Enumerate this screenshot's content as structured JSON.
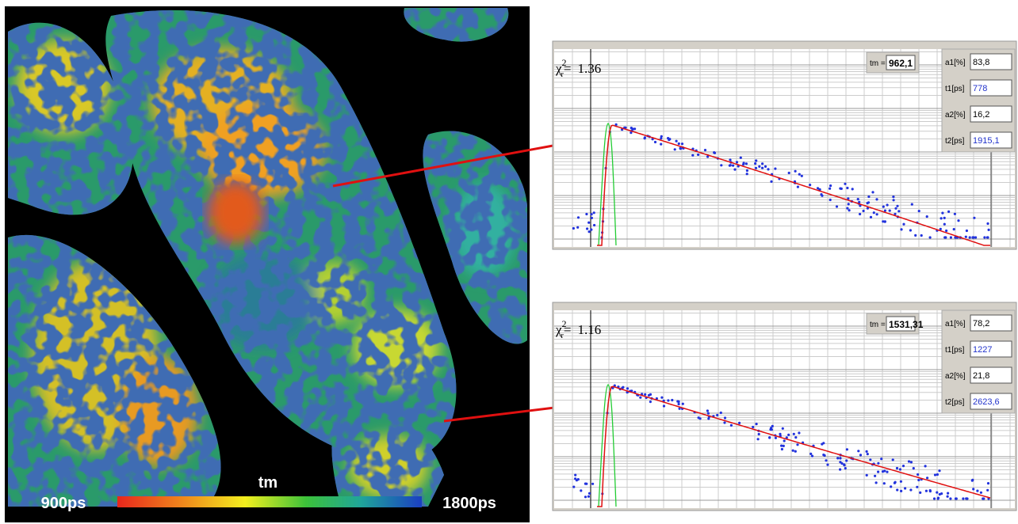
{
  "image": {
    "colorbar": {
      "title": "tm",
      "min_label": "900ps",
      "max_label": "1800ps"
    }
  },
  "panels": [
    {
      "chi": {
        "symbol": "χ",
        "sup": "2",
        "sub": "r",
        "eq": "=",
        "value": "1.36"
      },
      "tm": {
        "label": "tm =",
        "value": "962,1"
      },
      "params": [
        {
          "label": "a1[%]",
          "value": "83,8"
        },
        {
          "label": "t1[ps]",
          "value": "778"
        },
        {
          "label": "a2[%]",
          "value": "16,2"
        },
        {
          "label": "t2[ps]",
          "value": "1915,1"
        }
      ]
    },
    {
      "chi": {
        "symbol": "χ",
        "sup": "2",
        "sub": "r",
        "eq": "=",
        "value": "1.16"
      },
      "tm": {
        "label": "tm =",
        "value": "1531,31"
      },
      "params": [
        {
          "label": "a1[%]",
          "value": "78,2"
        },
        {
          "label": "t1[ps]",
          "value": "1227"
        },
        {
          "label": "a2[%]",
          "value": "21,8"
        },
        {
          "label": "t2[ps]",
          "value": "2623,6"
        }
      ]
    }
  ]
}
